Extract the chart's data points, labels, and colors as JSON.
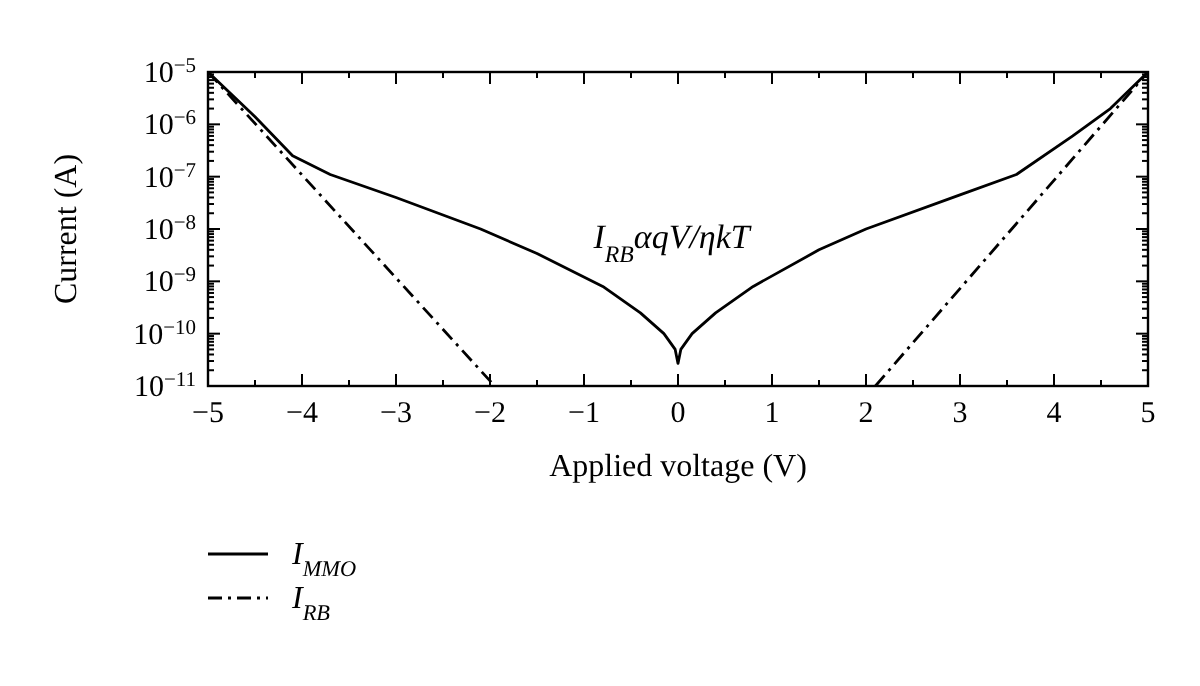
{
  "chart_data": {
    "type": "line",
    "xlabel": "Applied voltage (V)",
    "ylabel": "Current (A)",
    "log": "y",
    "grid": false,
    "legend": "bottom left",
    "xlim": [
      -5,
      5
    ],
    "xticks": [
      {
        "value": -5,
        "label": "−5"
      },
      {
        "value": -4,
        "label": "−4"
      },
      {
        "value": -3,
        "label": "−3"
      },
      {
        "value": -2,
        "label": "−2"
      },
      {
        "value": -1,
        "label": "−1"
      },
      0,
      1,
      2,
      3,
      4,
      5
    ],
    "ylim": [
      1e-11,
      1e-05
    ],
    "yticks": [
      {
        "value": 1e-11,
        "label": "10$^{−11}$"
      },
      {
        "value": 1e-10,
        "label": "10$^{−10}$"
      },
      {
        "value": 1e-09,
        "label": "10$^{−9}$"
      },
      {
        "value": 1e-08,
        "label": "10$^{−8}$"
      },
      {
        "value": 1e-07,
        "label": "10$^{−7}$"
      },
      {
        "value": 1e-06,
        "label": "10$^{−6}$"
      },
      {
        "value": 1e-05,
        "label": "10$^{−5}$"
      }
    ],
    "annotations": [
      "I$_{RB}$αqV/ηkT"
    ],
    "series": [
      {
        "name": "I$_{MMO}$",
        "color": "#000000",
        "line_style": "solid",
        "x": [
          -5,
          -4.5,
          -4.1,
          -3.7,
          -3,
          -2.1,
          -1.5,
          -0.8,
          -0.4,
          -0.15,
          -0.03,
          0,
          0.03,
          0.15,
          0.4,
          0.8,
          1.5,
          2,
          3,
          3.6,
          4.2,
          4.6,
          5
        ],
        "values": [
          1e-05,
          1.4e-06,
          2.5e-07,
          1.1e-07,
          4e-08,
          1e-08,
          3.4e-09,
          8e-10,
          2.5e-10,
          1e-10,
          5e-11,
          2.7e-11,
          5e-11,
          1e-10,
          2.5e-10,
          8e-10,
          4e-09,
          1e-08,
          4.5e-08,
          1.1e-07,
          6e-07,
          2e-06,
          1e-05
        ]
      },
      {
        "name": "I$_{RB}$",
        "color": "#000000",
        "line_style": "dashdot",
        "x": [
          -5,
          -1.95,
          null,
          2.1,
          5
        ],
        "values": [
          1e-05,
          1e-11,
          null,
          1e-11,
          1e-05
        ]
      }
    ]
  }
}
